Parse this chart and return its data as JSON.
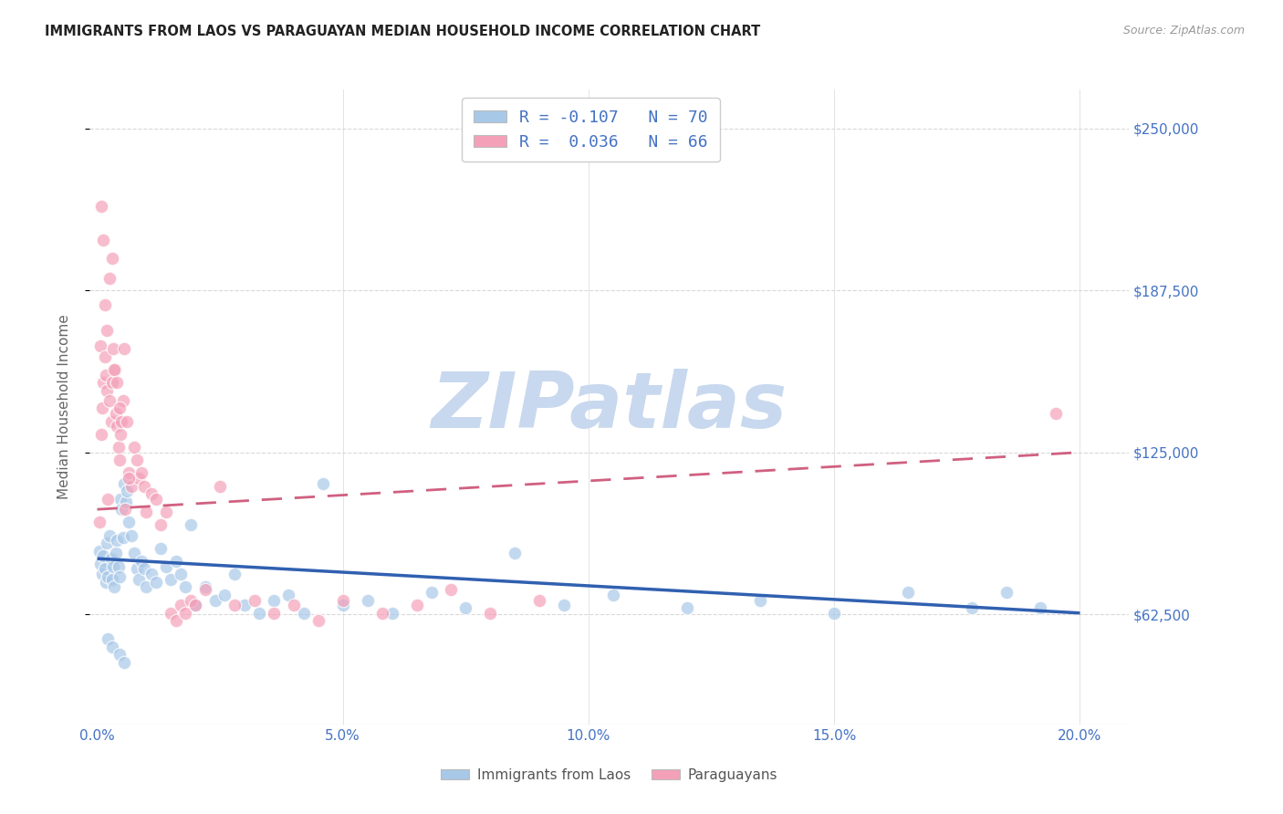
{
  "title": "IMMIGRANTS FROM LAOS VS PARAGUAYAN MEDIAN HOUSEHOLD INCOME CORRELATION CHART",
  "source": "Source: ZipAtlas.com",
  "ylabel": "Median Household Income",
  "ylim": [
    20000,
    265000
  ],
  "xlim": [
    -0.15,
    21.0
  ],
  "yticks": [
    62500,
    125000,
    187500,
    250000
  ],
  "ytick_labels": [
    "$62,500",
    "$125,000",
    "$187,500",
    "$250,000"
  ],
  "xticks": [
    0.0,
    5.0,
    10.0,
    15.0,
    20.0
  ],
  "watermark": "ZIPatlas",
  "blue_scatter_x": [
    0.05,
    0.07,
    0.1,
    0.12,
    0.15,
    0.18,
    0.2,
    0.22,
    0.25,
    0.28,
    0.3,
    0.33,
    0.35,
    0.38,
    0.4,
    0.43,
    0.45,
    0.48,
    0.5,
    0.53,
    0.55,
    0.58,
    0.6,
    0.65,
    0.7,
    0.75,
    0.8,
    0.85,
    0.9,
    0.95,
    1.0,
    1.1,
    1.2,
    1.3,
    1.4,
    1.5,
    1.6,
    1.7,
    1.8,
    1.9,
    2.0,
    2.2,
    2.4,
    2.6,
    2.8,
    3.0,
    3.3,
    3.6,
    3.9,
    4.2,
    4.6,
    5.0,
    5.5,
    6.0,
    6.8,
    7.5,
    8.5,
    9.5,
    10.5,
    12.0,
    13.5,
    15.0,
    16.5,
    17.8,
    18.5,
    19.2,
    0.22,
    0.3,
    0.45,
    0.55
  ],
  "blue_scatter_y": [
    87000,
    82000,
    78000,
    85000,
    80000,
    75000,
    90000,
    77000,
    93000,
    84000,
    76000,
    81000,
    73000,
    86000,
    91000,
    81000,
    77000,
    107000,
    103000,
    92000,
    113000,
    106000,
    110000,
    98000,
    93000,
    86000,
    80000,
    76000,
    83000,
    80000,
    73000,
    78000,
    75000,
    88000,
    81000,
    76000,
    83000,
    78000,
    73000,
    97000,
    66000,
    73000,
    68000,
    70000,
    78000,
    66000,
    63000,
    68000,
    70000,
    63000,
    113000,
    66000,
    68000,
    63000,
    71000,
    65000,
    86000,
    66000,
    70000,
    65000,
    68000,
    63000,
    71000,
    65000,
    71000,
    65000,
    53000,
    50000,
    47000,
    44000
  ],
  "pink_scatter_x": [
    0.04,
    0.06,
    0.08,
    0.1,
    0.13,
    0.16,
    0.18,
    0.2,
    0.22,
    0.25,
    0.28,
    0.3,
    0.33,
    0.36,
    0.38,
    0.4,
    0.43,
    0.45,
    0.48,
    0.5,
    0.53,
    0.56,
    0.6,
    0.65,
    0.7,
    0.75,
    0.8,
    0.85,
    0.9,
    0.95,
    1.0,
    1.1,
    1.2,
    1.3,
    1.4,
    1.5,
    1.6,
    1.7,
    1.8,
    1.9,
    2.0,
    2.2,
    2.5,
    2.8,
    3.2,
    3.6,
    4.0,
    4.5,
    5.0,
    5.8,
    6.5,
    7.2,
    8.0,
    9.0,
    0.08,
    0.12,
    0.15,
    0.2,
    0.25,
    0.3,
    0.35,
    0.4,
    0.45,
    0.55,
    0.65,
    19.5
  ],
  "pink_scatter_y": [
    98000,
    166000,
    132000,
    142000,
    152000,
    162000,
    155000,
    149000,
    107000,
    145000,
    137000,
    152000,
    165000,
    157000,
    140000,
    135000,
    127000,
    122000,
    132000,
    137000,
    145000,
    103000,
    137000,
    117000,
    112000,
    127000,
    122000,
    115000,
    117000,
    112000,
    102000,
    109000,
    107000,
    97000,
    102000,
    63000,
    60000,
    66000,
    63000,
    68000,
    66000,
    72000,
    112000,
    66000,
    68000,
    63000,
    66000,
    60000,
    68000,
    63000,
    66000,
    72000,
    63000,
    68000,
    220000,
    207000,
    182000,
    172000,
    192000,
    200000,
    157000,
    152000,
    142000,
    165000,
    115000,
    140000
  ],
  "blue_trend_x": [
    0.0,
    20.0
  ],
  "blue_trend_y": [
    84000,
    63000
  ],
  "pink_trend_x": [
    0.0,
    20.0
  ],
  "pink_trend_y": [
    103000,
    125000
  ],
  "blue_scatter_color": "#a8c8e8",
  "pink_scatter_color": "#f4a0b8",
  "blue_trend_color": "#3060b0",
  "pink_trend_color": "#d06080",
  "title_color": "#222222",
  "right_tick_color": "#4472c4",
  "x_tick_color": "#4472c4",
  "grid_color": "#d8d8d8",
  "watermark_color": "#c8d8ee",
  "background_color": "#ffffff",
  "legend_edge_color": "#cccccc",
  "legend_face_color": "#ffffff",
  "legend_text_color": "#4472c4",
  "bottom_legend_text_color": "#555555"
}
